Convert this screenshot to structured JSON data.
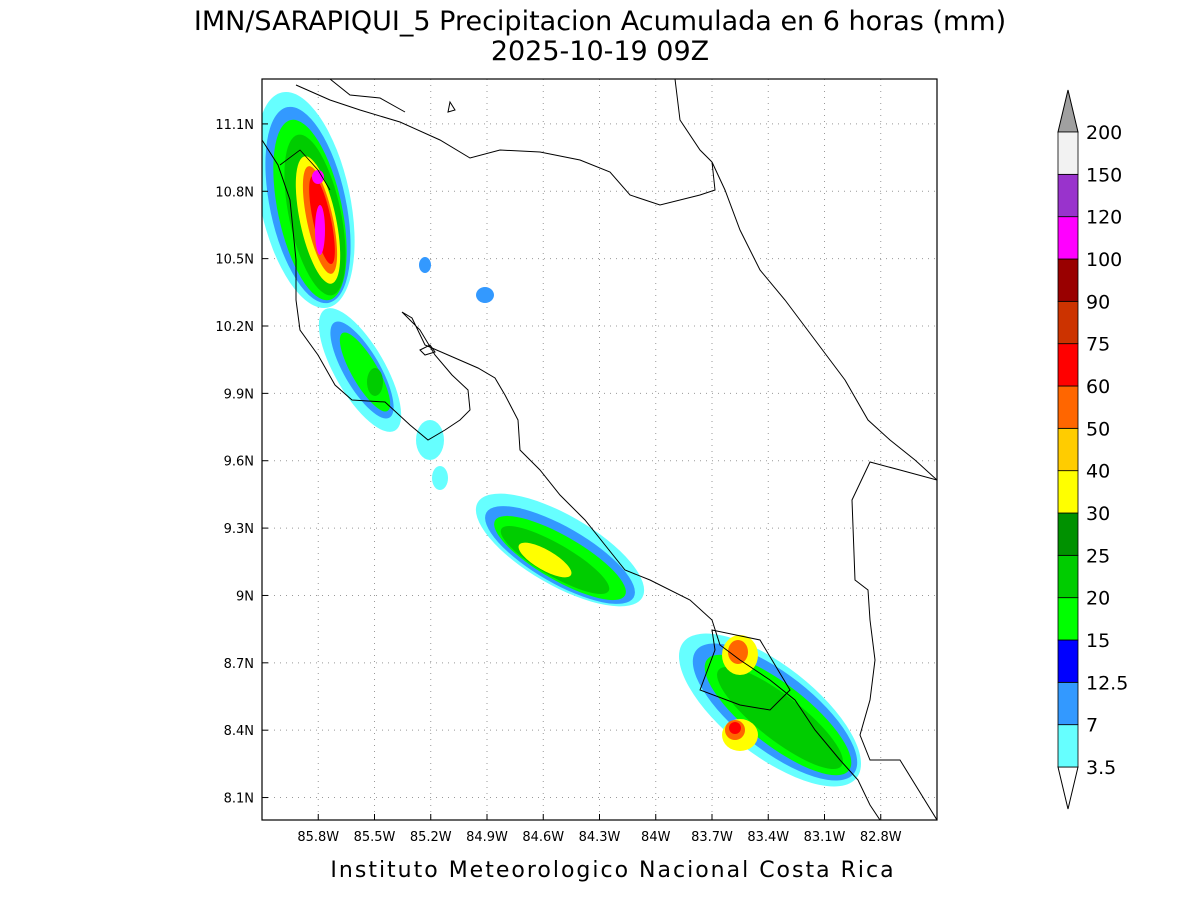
{
  "map": {
    "title": "IMN/SARAPIQUI_5 Precipitacion Acumulada en 6 horas (mm)",
    "subtitle": "2025-10-19 09Z",
    "footer": "Instituto Meteorologico Nacional Costa Rica",
    "lonlim": [
      -86.1,
      -82.5
    ],
    "latlim": [
      8.0,
      11.3
    ],
    "lon_ticks": [
      {
        "value": -85.8,
        "label": "85.8W"
      },
      {
        "value": -85.5,
        "label": "85.5W"
      },
      {
        "value": -85.2,
        "label": "85.2W"
      },
      {
        "value": -84.9,
        "label": "84.9W"
      },
      {
        "value": -84.6,
        "label": "84.6W"
      },
      {
        "value": -84.3,
        "label": "84.3W"
      },
      {
        "value": -84.0,
        "label": "84W"
      },
      {
        "value": -83.7,
        "label": "83.7W"
      },
      {
        "value": -83.4,
        "label": "83.4W"
      },
      {
        "value": -83.1,
        "label": "83.1W"
      },
      {
        "value": -82.8,
        "label": "82.8W"
      }
    ],
    "lat_ticks": [
      {
        "value": 11.1,
        "label": "11.1N"
      },
      {
        "value": 10.8,
        "label": "10.8N"
      },
      {
        "value": 10.5,
        "label": "10.5N"
      },
      {
        "value": 10.2,
        "label": "10.2N"
      },
      {
        "value": 9.9,
        "label": "9.9N"
      },
      {
        "value": 9.6,
        "label": "9.6N"
      },
      {
        "value": 9.3,
        "label": "9.3N"
      },
      {
        "value": 9.0,
        "label": "9N"
      },
      {
        "value": 8.7,
        "label": "8.7N"
      },
      {
        "value": 8.4,
        "label": "8.4N"
      },
      {
        "value": 8.1,
        "label": "8.1N"
      }
    ],
    "grid": true,
    "colorbar": {
      "levels": [
        3.5,
        7,
        12.5,
        15,
        20,
        25,
        30,
        40,
        50,
        60,
        75,
        90,
        100,
        120,
        150,
        200
      ],
      "colors": [
        "#66ffff",
        "#3399ff",
        "#0000ff",
        "#00ff00",
        "#00cc00",
        "#009100",
        "#ffff00",
        "#ffcc00",
        "#ff6600",
        "#ff0000",
        "#cc3300",
        "#990000",
        "#ff00ff",
        "#9933cc",
        "#f2f2f2"
      ],
      "under_color": "#ffffff",
      "over_color": "#a0a0a0"
    }
  }
}
